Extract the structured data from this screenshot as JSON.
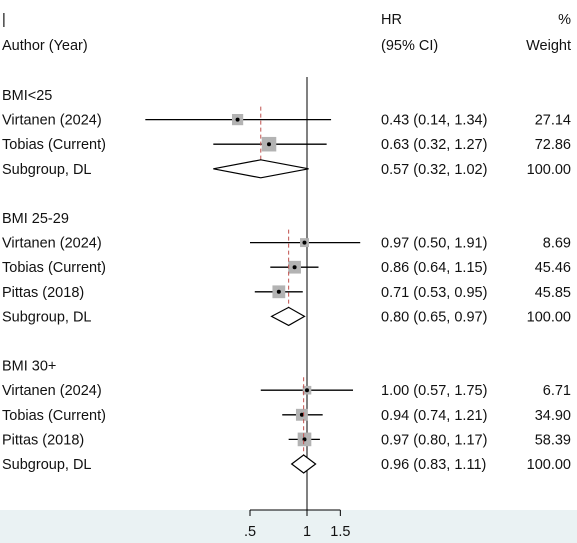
{
  "chart_data": {
    "type": "forest",
    "header": {
      "study_col": "Author (Year)",
      "hr_col_line1": "HR",
      "hr_col_line2": "(95% CI)",
      "weight_col_line1": "%",
      "weight_col_line2": "Weight",
      "top_mark": "|"
    },
    "scale": "log",
    "null_value": 1,
    "x_ticks": [
      {
        "value": 0.5,
        "label": ".5"
      },
      {
        "value": 1,
        "label": "1"
      },
      {
        "value": 1.5,
        "label": "1.5"
      }
    ],
    "subgroups": [
      {
        "label": "BMI<25",
        "studies": [
          {
            "name": "Virtanen (2024)",
            "hr": 0.43,
            "lo": 0.14,
            "hi": 1.34,
            "ci_text": "0.43 (0.14, 1.34)",
            "weight": "27.14"
          },
          {
            "name": "Tobias (Current)",
            "hr": 0.63,
            "lo": 0.32,
            "hi": 1.27,
            "ci_text": "0.63 (0.32, 1.27)",
            "weight": "72.86"
          }
        ],
        "pooled": {
          "name": "Subgroup, DL",
          "hr": 0.57,
          "lo": 0.32,
          "hi": 1.02,
          "ci_text": "0.57 (0.32, 1.02)",
          "weight": "100.00"
        }
      },
      {
        "label": "BMI 25-29",
        "studies": [
          {
            "name": "Virtanen (2024)",
            "hr": 0.97,
            "lo": 0.5,
            "hi": 1.91,
            "ci_text": "0.97 (0.50, 1.91)",
            "weight": "8.69"
          },
          {
            "name": "Tobias (Current)",
            "hr": 0.86,
            "lo": 0.64,
            "hi": 1.15,
            "ci_text": "0.86 (0.64, 1.15)",
            "weight": "45.46"
          },
          {
            "name": "Pittas (2018)",
            "hr": 0.71,
            "lo": 0.53,
            "hi": 0.95,
            "ci_text": "0.71 (0.53, 0.95)",
            "weight": "45.85"
          }
        ],
        "pooled": {
          "name": "Subgroup, DL",
          "hr": 0.8,
          "lo": 0.65,
          "hi": 0.97,
          "ci_text": "0.80 (0.65, 0.97)",
          "weight": "100.00"
        }
      },
      {
        "label": "BMI 30+",
        "studies": [
          {
            "name": "Virtanen (2024)",
            "hr": 1.0,
            "lo": 0.57,
            "hi": 1.75,
            "ci_text": "1.00 (0.57, 1.75)",
            "weight": "6.71"
          },
          {
            "name": "Tobias (Current)",
            "hr": 0.94,
            "lo": 0.74,
            "hi": 1.21,
            "ci_text": "0.94 (0.74, 1.21)",
            "weight": "34.90"
          },
          {
            "name": "Pittas (2018)",
            "hr": 0.97,
            "lo": 0.8,
            "hi": 1.17,
            "ci_text": "0.97 (0.80, 1.17)",
            "weight": "58.39"
          }
        ],
        "pooled": {
          "name": "Subgroup, DL",
          "hr": 0.96,
          "lo": 0.83,
          "hi": 1.11,
          "ci_text": "0.96 (0.83, 1.11)",
          "weight": "100.00"
        }
      }
    ],
    "colors": {
      "background": "#ffffff",
      "axis_band": "#eaf2f3",
      "text": "#111111",
      "weight_box": "#b3b3b3",
      "ci_line": "#000000",
      "pooled_line": "#c0504d",
      "null_line": "#000000"
    }
  }
}
